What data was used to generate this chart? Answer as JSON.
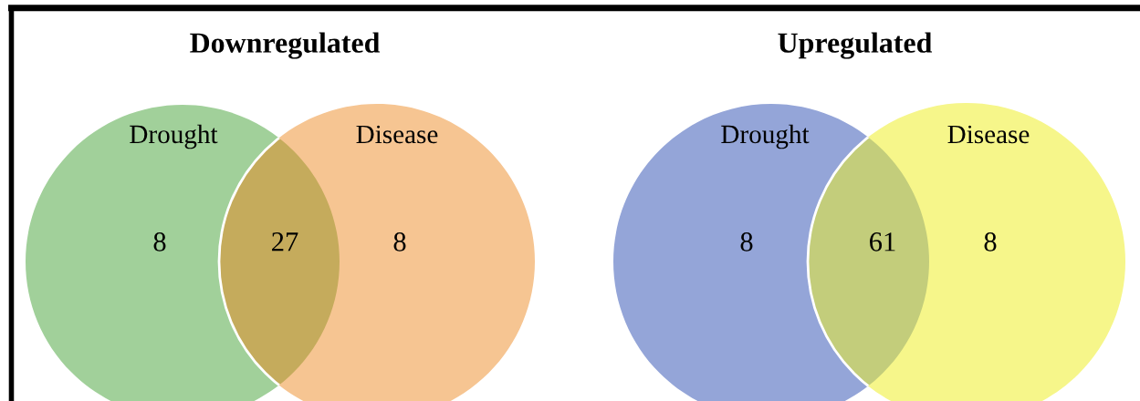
{
  "chart_data": [
    {
      "type": "other",
      "title": "Downregulated",
      "categories": [
        "Drought",
        null,
        "Disease"
      ],
      "values": [
        8,
        27,
        8
      ],
      "colors": [
        "#a1d09a",
        "#c5ab5c",
        "#f6c592"
      ],
      "data_labels": true
    },
    {
      "type": "other",
      "title": "Upregulated",
      "categories": [
        "Drought",
        null,
        "Disease"
      ],
      "values": [
        8,
        61,
        8
      ],
      "colors": [
        "#94a5d8",
        "#c3cd7b",
        "#f6f68a"
      ],
      "data_labels": true
    }
  ]
}
